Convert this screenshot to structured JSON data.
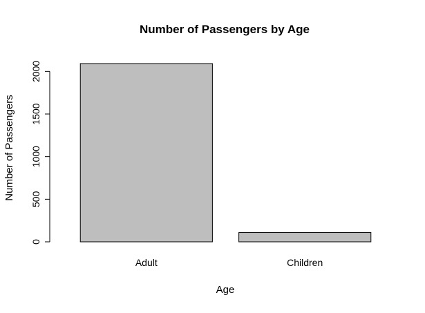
{
  "chart_data": {
    "type": "bar",
    "title": "Number of Passengers by Age",
    "xlabel": "Age",
    "ylabel": "Number of Passengers",
    "categories": [
      "Adult",
      "Children"
    ],
    "values": [
      2092,
      109
    ],
    "ylim": [
      0,
      2092
    ],
    "yticks": [
      0,
      500,
      1000,
      1500,
      2000
    ],
    "bar_color": "#bebebe",
    "border_color": "#000000",
    "grid": false,
    "legend": "none"
  }
}
